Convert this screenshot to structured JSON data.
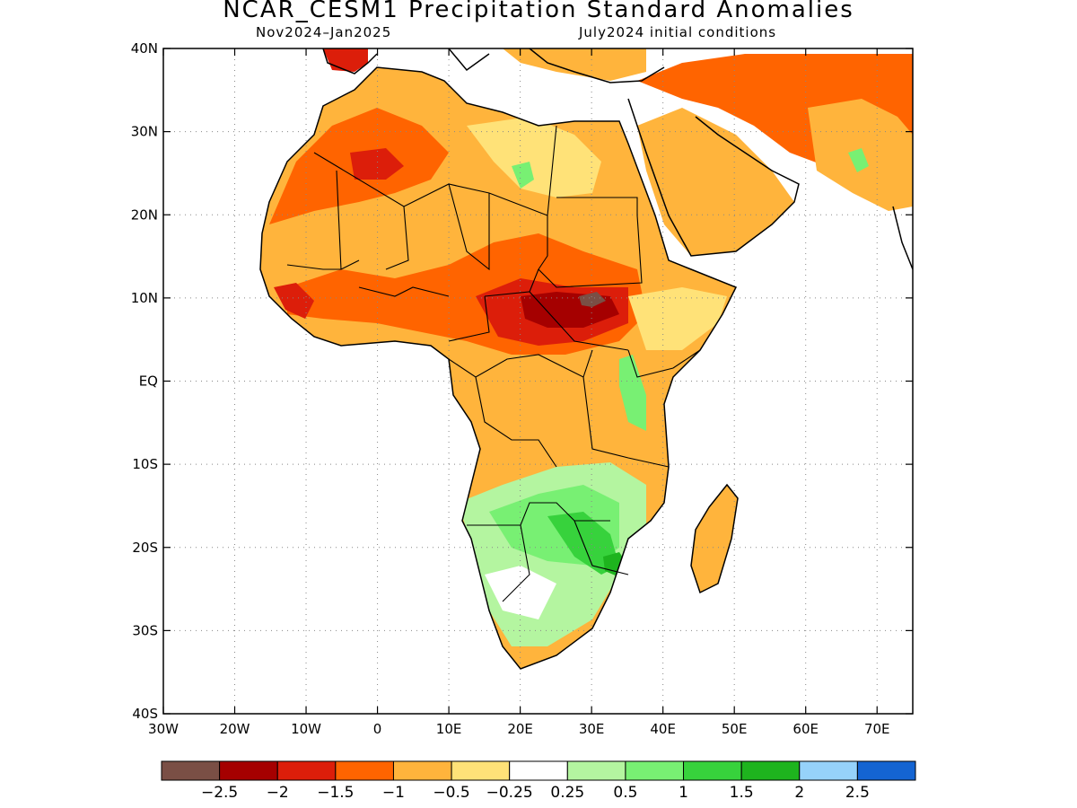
{
  "title": "NCAR_CESM1 Precipitation Standard Anomalies",
  "subtitle_left": "Nov2024–Jan2025",
  "subtitle_right": "July2024 initial conditions",
  "axes": {
    "lat_labels": [
      "40N",
      "30N",
      "20N",
      "10N",
      "EQ",
      "10S",
      "20S",
      "30S",
      "40S"
    ],
    "lon_labels": [
      "30W",
      "20W",
      "10W",
      "0",
      "10E",
      "20E",
      "30E",
      "40E",
      "50E",
      "60E",
      "70E"
    ],
    "lat_range": [
      -40,
      40
    ],
    "lon_range": [
      -30,
      75
    ],
    "grid": "dotted"
  },
  "colorbar": {
    "colors": [
      "#7a4f45",
      "#a50000",
      "#dc1e0a",
      "#ff6400",
      "#ffb43c",
      "#ffe278",
      "#ffffff",
      "#b4f5a0",
      "#78f073",
      "#37d23c",
      "#1eb41e",
      "#96d2fa",
      "#1464d2"
    ],
    "labels": [
      "−2.5",
      "−2",
      "−1.5",
      "−1",
      "−0.5",
      "−0.25",
      "0.25",
      "0.5",
      "1",
      "1.5",
      "2",
      "2.5"
    ]
  },
  "colors": {
    "ocean": "#ffffff",
    "border": "#000000"
  }
}
